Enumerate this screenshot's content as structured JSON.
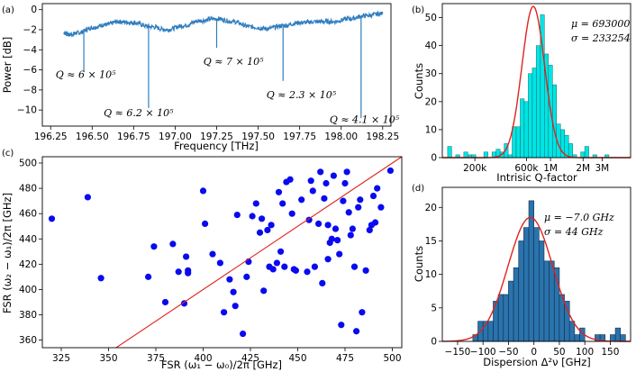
{
  "chart_data": [
    {
      "panel_label": "(a)",
      "type": "line",
      "xlabel": "Frequency [THz]",
      "ylabel": "Power [dB]",
      "xlim": [
        196.2,
        198.3
      ],
      "ylim": [
        -11.6,
        0.6
      ],
      "xticks": [
        196.25,
        196.5,
        196.75,
        197.0,
        197.25,
        197.5,
        197.75,
        198.0,
        198.25
      ],
      "xtick_labels": [
        "196.25",
        "196.50",
        "196.75",
        "197.00",
        "197.25",
        "197.50",
        "197.75",
        "198.00",
        "198.25"
      ],
      "yticks": [
        0,
        -2,
        -4,
        -6,
        -8,
        -10
      ],
      "ytick_labels": [
        "0",
        "−2",
        "−4",
        "−6",
        "−8",
        "−10"
      ],
      "series": [
        {
          "x": [
            196.33,
            196.36,
            196.42,
            196.5,
            196.58,
            196.66,
            196.75,
            196.85,
            196.95,
            197.05,
            197.15,
            197.25,
            197.35,
            197.45,
            197.55,
            197.65,
            197.75,
            197.85,
            197.95,
            198.05,
            198.15,
            198.25
          ],
          "y": [
            -2.3,
            -2.5,
            -2.3,
            -1.8,
            -1.5,
            -1.2,
            -1.3,
            -1.7,
            -2.0,
            -1.6,
            -1.1,
            -0.9,
            -1.2,
            -1.7,
            -1.9,
            -1.6,
            -1.3,
            -1.2,
            -1.2,
            -0.9,
            -0.6,
            -0.4
          ]
        }
      ],
      "resonances": [
        {
          "x": 196.45,
          "y": -6.2
        },
        {
          "x": 196.84,
          "y": -9.8
        },
        {
          "x": 197.25,
          "y": -3.8
        },
        {
          "x": 197.65,
          "y": -7.1
        },
        {
          "x": 198.12,
          "y": -10.8
        }
      ],
      "annotations": [
        {
          "text": "Q ≈ 6 × 10⁵",
          "x": 196.28,
          "y": -6.8
        },
        {
          "text": "Q ≈ 6.2 × 10⁵",
          "x": 196.57,
          "y": -10.6
        },
        {
          "text": "Q ≈ 7 × 10⁵",
          "x": 197.17,
          "y": -5.5
        },
        {
          "text": "Q ≈ 2.3 × 10⁵",
          "x": 197.55,
          "y": -8.8
        },
        {
          "text": "Q ≈ 4.1 × 10⁵",
          "x": 197.93,
          "y": -11.3
        }
      ]
    },
    {
      "panel_label": "(b)",
      "type": "bar",
      "xlabel": "Intrisic Q-factor",
      "ylabel": "Counts",
      "xscale": "log",
      "xlim": [
        100000,
        5500000
      ],
      "ylim": [
        0,
        55
      ],
      "xticks": [
        200000,
        600000,
        1000000,
        2000000,
        3000000
      ],
      "xtick_labels": [
        "200k",
        "600k",
        "1M",
        "2M",
        "3M"
      ],
      "yticks": [
        0,
        10,
        20,
        30,
        40,
        50
      ],
      "ytick_labels": [
        "0",
        "10",
        "20",
        "30",
        "40",
        "50"
      ],
      "bin_edges": [
        112000,
        122000,
        133000,
        145000,
        158000,
        172000,
        187000,
        204000,
        222000,
        242000,
        264000,
        288000,
        314000,
        342000,
        373000,
        406000,
        442000,
        482000,
        525000,
        572000,
        623000,
        679000,
        740000,
        806000,
        878000,
        957000,
        1043000,
        1136000,
        1238000,
        1349000,
        1470000,
        1602000,
        1745000,
        1902000,
        2072000,
        2258000,
        2460000,
        2681000,
        2921000,
        3183000,
        3468000,
        3779000,
        4118000,
        4487000
      ],
      "values": [
        4,
        0,
        1,
        0,
        2,
        1,
        1,
        0,
        0,
        2,
        0,
        2,
        3,
        2,
        5,
        1,
        11,
        11,
        21,
        20,
        30,
        32,
        40,
        51,
        37,
        33,
        26,
        12,
        10,
        8,
        5,
        1,
        0,
        2,
        4,
        0,
        1,
        0,
        0,
        1,
        0,
        0,
        0
      ],
      "fit_mu": 693000,
      "fit_sigma": 233254,
      "fit_peak": 54,
      "legend": [
        "μ = 693000",
        "σ = 233254"
      ]
    },
    {
      "panel_label": "(c)",
      "type": "scatter",
      "xlabel": "FSR (ω₁ − ω₀)/2π [GHz]",
      "ylabel": "FSR (ω₂ − ω₁)/2π [GHz]",
      "xlim": [
        315,
        505
      ],
      "ylim": [
        354,
        505
      ],
      "xticks": [
        325,
        350,
        375,
        400,
        425,
        450,
        475,
        500
      ],
      "xtick_labels": [
        "325",
        "350",
        "375",
        "400",
        "425",
        "450",
        "475",
        "500"
      ],
      "yticks": [
        360,
        380,
        400,
        420,
        440,
        460,
        480,
        500
      ],
      "ytick_labels": [
        "360",
        "380",
        "400",
        "420",
        "440",
        "460",
        "480",
        "500"
      ],
      "points": [
        [
          320,
          456
        ],
        [
          339,
          473
        ],
        [
          346,
          409
        ],
        [
          371,
          410
        ],
        [
          374,
          434
        ],
        [
          380,
          390
        ],
        [
          384,
          436
        ],
        [
          387,
          414
        ],
        [
          390,
          389
        ],
        [
          391,
          426
        ],
        [
          392,
          413
        ],
        [
          392,
          415
        ],
        [
          400,
          478
        ],
        [
          401,
          452
        ],
        [
          405,
          428
        ],
        [
          409,
          421
        ],
        [
          411,
          382
        ],
        [
          414,
          408
        ],
        [
          416,
          398
        ],
        [
          417,
          387
        ],
        [
          418,
          459
        ],
        [
          421,
          365
        ],
        [
          423,
          410
        ],
        [
          424,
          422
        ],
        [
          426,
          458
        ],
        [
          428,
          468
        ],
        [
          430,
          445
        ],
        [
          431,
          456
        ],
        [
          432,
          399
        ],
        [
          434,
          447
        ],
        [
          435,
          418
        ],
        [
          436,
          451
        ],
        [
          437,
          416
        ],
        [
          439,
          421
        ],
        [
          440,
          477
        ],
        [
          441,
          430
        ],
        [
          442,
          468
        ],
        [
          443,
          418
        ],
        [
          444,
          485
        ],
        [
          446,
          487
        ],
        [
          447,
          460
        ],
        [
          448,
          416
        ],
        [
          449,
          415
        ],
        [
          452,
          471
        ],
        [
          455,
          414
        ],
        [
          457,
          486
        ],
        [
          458,
          478
        ],
        [
          459,
          418
        ],
        [
          461,
          452
        ],
        [
          462,
          493
        ],
        [
          463,
          405
        ],
        [
          464,
          472
        ],
        [
          465,
          484
        ],
        [
          466,
          451
        ],
        [
          467,
          437
        ],
        [
          468,
          440
        ],
        [
          469,
          490
        ],
        [
          470,
          448
        ],
        [
          471,
          439
        ],
        [
          472,
          428
        ],
        [
          473,
          372
        ],
        [
          474,
          470
        ],
        [
          475,
          484
        ],
        [
          476,
          493
        ],
        [
          477,
          461
        ],
        [
          478,
          443
        ],
        [
          479,
          448
        ],
        [
          480,
          418
        ],
        [
          481,
          367
        ],
        [
          482,
          465
        ],
        [
          483,
          471
        ],
        [
          484,
          382
        ],
        [
          486,
          415
        ],
        [
          488,
          447
        ],
        [
          489,
          451
        ],
        [
          490,
          474
        ],
        [
          491,
          453
        ],
        [
          492,
          480
        ],
        [
          494,
          465
        ],
        [
          499,
          494
        ],
        [
          466,
          424
        ],
        [
          456,
          455
        ]
      ],
      "fit_line": [
        [
          315,
          318
        ],
        [
          505,
          510
        ]
      ]
    },
    {
      "panel_label": "(d)",
      "type": "bar",
      "xlabel": "Dispersion Δ²ν [GHz]",
      "ylabel": "Counts",
      "xlim": [
        -180,
        190
      ],
      "ylim": [
        0,
        23
      ],
      "xticks": [
        -150,
        -100,
        -50,
        0,
        50,
        100,
        150
      ],
      "xtick_labels": [
        "−150",
        "−100",
        "−50",
        "0",
        "50",
        "100",
        "150"
      ],
      "yticks": [
        0,
        5,
        10,
        15,
        20
      ],
      "ytick_labels": [
        "0",
        "5",
        "10",
        "15",
        "20"
      ],
      "bin_edges": [
        -120,
        -110,
        -100,
        -90,
        -80,
        -70,
        -60,
        -50,
        -40,
        -30,
        -20,
        -10,
        0,
        10,
        20,
        30,
        40,
        50,
        60,
        70,
        80,
        90,
        100,
        110,
        120,
        130,
        140,
        150,
        160,
        170,
        180
      ],
      "values": [
        1,
        3,
        3,
        3,
        6,
        7,
        7,
        9,
        11,
        15,
        17,
        21,
        17,
        15,
        12,
        12,
        11,
        7,
        6,
        3,
        1,
        2,
        0,
        0,
        1,
        1,
        0,
        1,
        2,
        1
      ],
      "fit_mu": -7.0,
      "fit_sigma": 44,
      "fit_peak": 18.5,
      "legend": [
        "μ = −7.0 GHz",
        "σ = 44 GHz"
      ]
    }
  ],
  "colors": {
    "trace": "#2f7dbf",
    "hist_b_fill": "#00e5e5",
    "hist_d_fill": "#2a73ad",
    "fit": "#e0221f",
    "scatter": "#0a0af0",
    "frame": "#000000"
  }
}
